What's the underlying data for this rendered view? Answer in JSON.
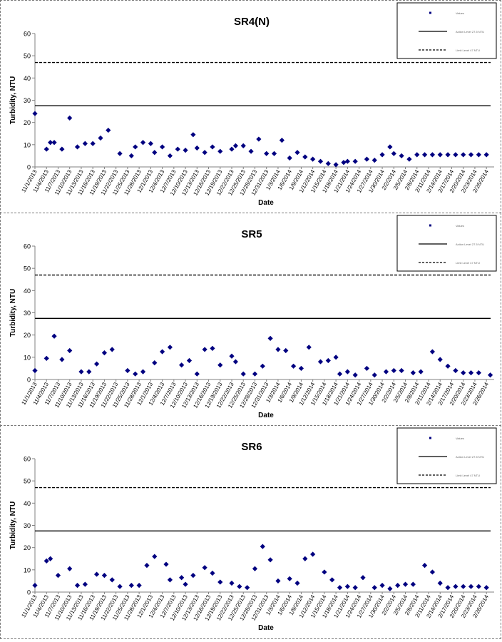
{
  "colors": {
    "marker": "#000080",
    "axis": "#808080",
    "line": "#000000",
    "text": "#000000"
  },
  "chart_data": [
    {
      "type": "scatter",
      "title": "SR4(N)",
      "xlabel": "Date",
      "ylabel": "Turbidity, NTU",
      "ylim": [
        0,
        60
      ],
      "yticks": [
        "0",
        "10",
        "20",
        "30",
        "40",
        "50",
        "60"
      ],
      "x_tick_labels": [
        "11/1/2013",
        "11/4/2013",
        "11/7/2013",
        "11/10/2013",
        "11/13/2013",
        "11/16/2013",
        "11/19/2013",
        "11/22/2013",
        "11/25/2013",
        "11/28/2013",
        "12/1/2013",
        "12/4/2013",
        "12/7/2013",
        "12/10/2013",
        "12/13/2013",
        "12/16/2013",
        "12/19/2013",
        "12/22/2013",
        "12/25/2013",
        "12/28/2013",
        "12/31/2013",
        "1/3/2014",
        "1/6/2014",
        "1/9/2014",
        "1/12/2014",
        "1/15/2014",
        "1/18/2014",
        "1/21/2014",
        "1/24/2014",
        "1/27/2014",
        "1/30/2014",
        "2/2/2014",
        "2/5/2014",
        "2/8/2014",
        "2/11/2014",
        "2/14/2014",
        "2/17/2014",
        "2/20/2014",
        "2/23/2014",
        "2/26/2014"
      ],
      "x_range": [
        "2013-11-01",
        "2014-02-28"
      ],
      "legend_placement": "top-right",
      "legend_entries": [
        "Values",
        "Action Level 27.5 NTU",
        "Limit Level 47 NTU"
      ],
      "grid": false,
      "reference_lines": [
        {
          "name": "Action Level",
          "value": 27.5,
          "style": "solid"
        },
        {
          "name": "Limit Level",
          "value": 47,
          "style": "dashed"
        }
      ],
      "series": [
        {
          "x": [
            "2013-11-01",
            "2013-11-04",
            "2013-11-05",
            "2013-11-06",
            "2013-11-08",
            "2013-11-10",
            "2013-11-12",
            "2013-11-14",
            "2013-11-16",
            "2013-11-18",
            "2013-11-20",
            "2013-11-23",
            "2013-11-26",
            "2013-11-27",
            "2013-11-29",
            "2013-12-01",
            "2013-12-02",
            "2013-12-04",
            "2013-12-06",
            "2013-12-08",
            "2013-12-10",
            "2013-12-12",
            "2013-12-13",
            "2013-12-15",
            "2013-12-17",
            "2013-12-19",
            "2013-12-22",
            "2013-12-23",
            "2013-12-25",
            "2013-12-27",
            "2013-12-29",
            "2013-12-31",
            "2014-01-02",
            "2014-01-04",
            "2014-01-06",
            "2014-01-08",
            "2014-01-10",
            "2014-01-12",
            "2014-01-14",
            "2014-01-16",
            "2014-01-18",
            "2014-01-20",
            "2014-01-21",
            "2014-01-23",
            "2014-01-26",
            "2014-01-28",
            "2014-01-30",
            "2014-02-01",
            "2014-02-02",
            "2014-02-04",
            "2014-02-06",
            "2014-02-08",
            "2014-02-10",
            "2014-02-12",
            "2014-02-14",
            "2014-02-16",
            "2014-02-18",
            "2014-02-20",
            "2014-02-22",
            "2014-02-24",
            "2014-02-26"
          ],
          "values": [
            24,
            8,
            11,
            11,
            8,
            22,
            9,
            10.5,
            10.5,
            13,
            16.5,
            6,
            5,
            9,
            11,
            10.5,
            6.5,
            9,
            5,
            8,
            7.5,
            14.5,
            8.5,
            6.5,
            9,
            7,
            8,
            9.5,
            9.5,
            7,
            12.5,
            6,
            6,
            12,
            4,
            6.5,
            4.5,
            3.5,
            2.5,
            1.5,
            1,
            2,
            2.5,
            2.5,
            3.5,
            3,
            5.5,
            9,
            6,
            5,
            3.5,
            5.5,
            5.5,
            5.5,
            5.5,
            5.5,
            5.5,
            5.5,
            5.5,
            5.5,
            5.5
          ]
        }
      ]
    },
    {
      "type": "scatter",
      "title": "SR5",
      "xlabel": "Date",
      "ylabel": "Turbidity, NTU",
      "ylim": [
        0,
        60
      ],
      "yticks": [
        "0",
        "10",
        "20",
        "30",
        "40",
        "50",
        "60"
      ],
      "x_tick_labels": [
        "11/1/2013",
        "11/4/2013",
        "11/7/2013",
        "11/10/2013",
        "11/13/2013",
        "11/16/2013",
        "11/19/2013",
        "11/22/2013",
        "11/25/2013",
        "11/28/2013",
        "12/1/2013",
        "12/4/2013",
        "12/7/2013",
        "12/10/2013",
        "12/13/2013",
        "12/16/2013",
        "12/19/2013",
        "12/22/2013",
        "12/25/2013",
        "12/28/2013",
        "12/31/2013",
        "1/3/2014",
        "1/6/2014",
        "1/9/2014",
        "1/12/2014",
        "1/15/2014",
        "1/18/2014",
        "1/21/2014",
        "1/24/2014",
        "1/27/2014",
        "1/30/2014",
        "2/2/2014",
        "2/5/2014",
        "2/8/2014",
        "2/11/2014",
        "2/14/2014",
        "2/17/2014",
        "2/20/2014",
        "2/23/2014",
        "2/26/2014"
      ],
      "x_range": [
        "2013-11-01",
        "2014-02-28"
      ],
      "legend_placement": "top-right",
      "legend_entries": [
        "Values",
        "Action Level 27.5 NTU",
        "Limit Level 47 NTU"
      ],
      "grid": false,
      "reference_lines": [
        {
          "name": "Action Level",
          "value": 27.5,
          "style": "solid"
        },
        {
          "name": "Limit Level",
          "value": 47,
          "style": "dashed"
        }
      ],
      "series": [
        {
          "x": [
            "2013-11-01",
            "2013-11-04",
            "2013-11-06",
            "2013-11-08",
            "2013-11-10",
            "2013-11-13",
            "2013-11-15",
            "2013-11-17",
            "2013-11-19",
            "2013-11-21",
            "2013-11-25",
            "2013-11-27",
            "2013-11-29",
            "2013-12-02",
            "2013-12-04",
            "2013-12-06",
            "2013-12-09",
            "2013-12-11",
            "2013-12-13",
            "2013-12-15",
            "2013-12-17",
            "2013-12-19",
            "2013-12-22",
            "2013-12-23",
            "2013-12-25",
            "2013-12-28",
            "2013-12-30",
            "2014-01-01",
            "2014-01-03",
            "2014-01-05",
            "2014-01-07",
            "2014-01-09",
            "2014-01-11",
            "2014-01-14",
            "2014-01-16",
            "2014-01-18",
            "2014-01-19",
            "2014-01-21",
            "2014-01-23",
            "2014-01-26",
            "2014-01-28",
            "2014-01-31",
            "2014-02-02",
            "2014-02-04",
            "2014-02-07",
            "2014-02-09",
            "2014-02-12",
            "2014-02-14",
            "2014-02-16",
            "2014-02-18",
            "2014-02-20",
            "2014-02-22",
            "2014-02-24",
            "2014-02-27"
          ],
          "values": [
            4,
            9.5,
            19.5,
            9,
            13,
            3.5,
            3.5,
            7,
            12,
            13.5,
            4,
            2.5,
            3.5,
            7.5,
            12.5,
            14.5,
            6.5,
            8.5,
            2.5,
            13.5,
            14,
            6.5,
            10.5,
            8,
            2.5,
            2.5,
            6,
            18.5,
            13.5,
            13,
            6,
            5,
            14.5,
            8,
            8.5,
            10,
            2.5,
            3.5,
            2,
            5,
            2,
            3.5,
            4,
            4,
            3,
            3.5,
            12.5,
            9,
            6,
            4,
            3,
            3,
            3,
            2
          ]
        }
      ]
    },
    {
      "type": "scatter",
      "title": "SR6",
      "xlabel": "Date",
      "ylabel": "Turbidity, NTU",
      "ylim": [
        0,
        60
      ],
      "yticks": [
        "0",
        "10",
        "20",
        "30",
        "40",
        "50",
        "60"
      ],
      "x_tick_labels": [
        "11/1/2013",
        "11/4/2013",
        "11/7/2013",
        "11/10/2013",
        "11/13/2013",
        "11/16/2013",
        "11/19/2013",
        "11/22/2013",
        "11/25/2013",
        "11/28/2013",
        "12/1/2013",
        "12/4/2013",
        "12/7/2013",
        "12/10/2013",
        "12/13/2013",
        "12/16/2013",
        "12/19/2013",
        "12/22/2013",
        "12/25/2013",
        "12/28/2013",
        "12/31/2013",
        "1/3/2014",
        "1/6/2014",
        "1/9/2014",
        "1/12/2014",
        "1/15/2014",
        "1/18/2014",
        "1/21/2014",
        "1/24/2014",
        "1/27/2014",
        "1/30/2014",
        "2/2/2014",
        "2/5/2014",
        "2/8/2014",
        "2/11/2014",
        "2/14/2014",
        "2/17/2014",
        "2/20/2014",
        "2/23/2014",
        "2/26/2014"
      ],
      "x_range": [
        "2013-11-01",
        "2014-02-28"
      ],
      "legend_placement": "top-right",
      "legend_entries": [
        "Values",
        "Action Level 27.5 NTU",
        "Limit Level 47 NTU"
      ],
      "grid": false,
      "reference_lines": [
        {
          "name": "Action Level",
          "value": 27.5,
          "style": "solid"
        },
        {
          "name": "Limit Level",
          "value": 47,
          "style": "dashed"
        }
      ],
      "series": [
        {
          "x": [
            "2013-11-01",
            "2013-11-04",
            "2013-11-05",
            "2013-11-07",
            "2013-11-10",
            "2013-11-12",
            "2013-11-14",
            "2013-11-17",
            "2013-11-19",
            "2013-11-21",
            "2013-11-23",
            "2013-11-26",
            "2013-11-28",
            "2013-11-30",
            "2013-12-02",
            "2013-12-05",
            "2013-12-06",
            "2013-12-09",
            "2013-12-10",
            "2013-12-12",
            "2013-12-15",
            "2013-12-17",
            "2013-12-19",
            "2013-12-22",
            "2013-12-24",
            "2013-12-26",
            "2013-12-28",
            "2013-12-30",
            "2014-01-01",
            "2014-01-03",
            "2014-01-06",
            "2014-01-08",
            "2014-01-10",
            "2014-01-12",
            "2014-01-15",
            "2014-01-17",
            "2014-01-19",
            "2014-01-21",
            "2014-01-23",
            "2014-01-25",
            "2014-01-28",
            "2014-01-30",
            "2014-02-01",
            "2014-02-03",
            "2014-02-05",
            "2014-02-07",
            "2014-02-10",
            "2014-02-12",
            "2014-02-14",
            "2014-02-16",
            "2014-02-18",
            "2014-02-20",
            "2014-02-22",
            "2014-02-24",
            "2014-02-26"
          ],
          "values": [
            3,
            14,
            15,
            7.5,
            10.5,
            3,
            3.5,
            8,
            7.5,
            5.5,
            2.5,
            3,
            3,
            12,
            16,
            12.5,
            5.5,
            6.5,
            3.5,
            7.5,
            11,
            8.5,
            4.5,
            4,
            2.5,
            2,
            10.5,
            20.5,
            14.5,
            5,
            6,
            4,
            15,
            17,
            9,
            5.5,
            2,
            2.5,
            2,
            6.5,
            2,
            3,
            1.5,
            3,
            3.5,
            3.5,
            12,
            9,
            4,
            2,
            2.5,
            2.5,
            2.5,
            2.5,
            2
          ]
        }
      ]
    }
  ]
}
